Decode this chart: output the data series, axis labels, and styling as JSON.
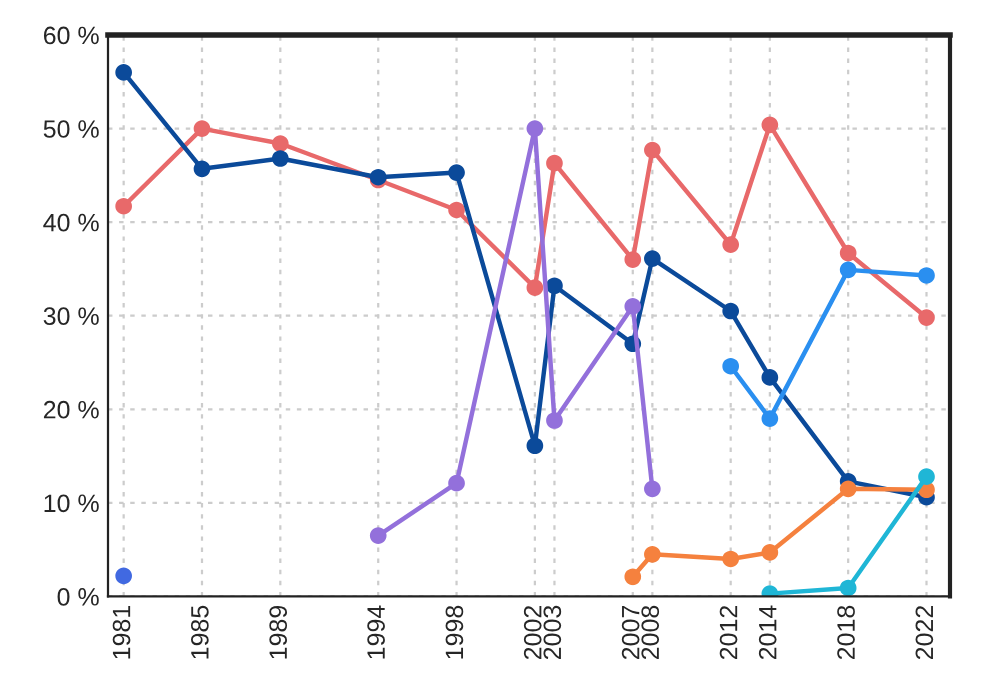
{
  "chart_data": {
    "type": "line",
    "xlim": [
      1980.2,
      2023.2
    ],
    "xticks": [
      1981,
      1985,
      1989,
      1994,
      1998,
      2002,
      2003,
      2007,
      2008,
      2012,
      2014,
      2018,
      2022
    ],
    "ylim": [
      0,
      60
    ],
    "yticks": [
      {
        "value": 0,
        "label": "0 %"
      },
      {
        "value": 10,
        "label": "10 %"
      },
      {
        "value": 20,
        "label": "20 %"
      },
      {
        "value": 30,
        "label": "30 %"
      },
      {
        "value": 40,
        "label": "40 %"
      },
      {
        "value": 50,
        "label": "50 %"
      },
      {
        "value": 60,
        "label": "60 %"
      }
    ],
    "grid": true,
    "marker": "circle",
    "line_style": "solid",
    "legend": false,
    "series": [
      {
        "color": "#e8696a",
        "x": [
          1981,
          1985,
          1989,
          1994,
          1998,
          2002,
          2003,
          2007,
          2008,
          2012,
          2014,
          2018,
          2022
        ],
        "values": [
          41.7,
          50.0,
          48.4,
          44.5,
          41.3,
          33.0,
          46.3,
          36.0,
          47.7,
          37.6,
          50.4,
          36.7,
          29.8
        ]
      },
      {
        "color": "#0b4a9a",
        "x": [
          1981,
          1985,
          1989,
          1994,
          1998,
          2002,
          2003,
          2007,
          2008,
          2012,
          2014,
          2018,
          2022
        ],
        "values": [
          56.0,
          45.7,
          46.8,
          44.8,
          45.3,
          16.1,
          33.2,
          27.0,
          36.1,
          30.5,
          23.4,
          12.3,
          10.6
        ]
      },
      {
        "color": "#9370db",
        "x": [
          1994,
          1998,
          2002,
          2003,
          2007,
          2008
        ],
        "values": [
          6.5,
          12.1,
          50.0,
          18.8,
          31.0,
          11.5
        ]
      },
      {
        "color": "#4169e1",
        "x": [
          1981
        ],
        "values": [
          2.2
        ]
      },
      {
        "color": "#2a8ff0",
        "x": [
          2012,
          2014,
          2018,
          2022
        ],
        "values": [
          24.6,
          19.0,
          34.9,
          34.3
        ]
      },
      {
        "color": "#f5813e",
        "x": [
          2007,
          2008,
          2012,
          2014,
          2018,
          2022
        ],
        "values": [
          2.1,
          4.5,
          4.0,
          4.7,
          11.5,
          11.4
        ]
      },
      {
        "color": "#1fb6d6",
        "x": [
          2014,
          2018,
          2022
        ],
        "values": [
          0.3,
          0.9,
          12.8
        ]
      }
    ]
  }
}
